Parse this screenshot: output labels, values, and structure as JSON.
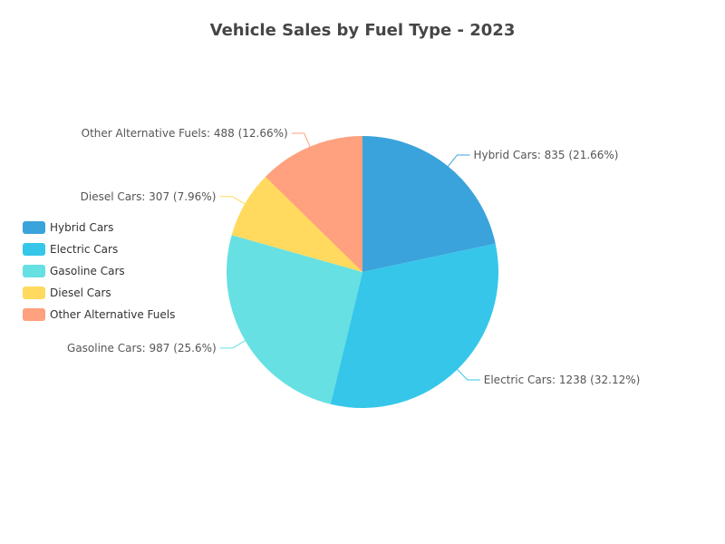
{
  "chart_data": {
    "type": "pie",
    "title": "Vehicle Sales by Fuel Type - 2023",
    "legend_position": "left",
    "start_angle_deg": 90,
    "direction": "clockwise",
    "slices": [
      {
        "name": "Hybrid Cars",
        "value": 835,
        "percent": "21.66%",
        "label": "Hybrid Cars: 835 (21.66%)",
        "color": "#3AA3DB"
      },
      {
        "name": "Electric Cars",
        "value": 1238,
        "percent": "32.12%",
        "label": "Electric Cars: 1238 (32.12%)",
        "color": "#36C6EA"
      },
      {
        "name": "Gasoline Cars",
        "value": 987,
        "percent": "25.6%",
        "label": "Gasoline Cars: 987 (25.6%)",
        "color": "#66E0E3"
      },
      {
        "name": "Diesel Cars",
        "value": 307,
        "percent": "7.96%",
        "label": "Diesel Cars: 307 (7.96%)",
        "color": "#FFDA5E"
      },
      {
        "name": "Other Alternative Fuels",
        "value": 488,
        "percent": "12.66%",
        "label": "Other Alternative Fuels: 488 (12.66%)",
        "color": "#FFA07E"
      }
    ]
  }
}
